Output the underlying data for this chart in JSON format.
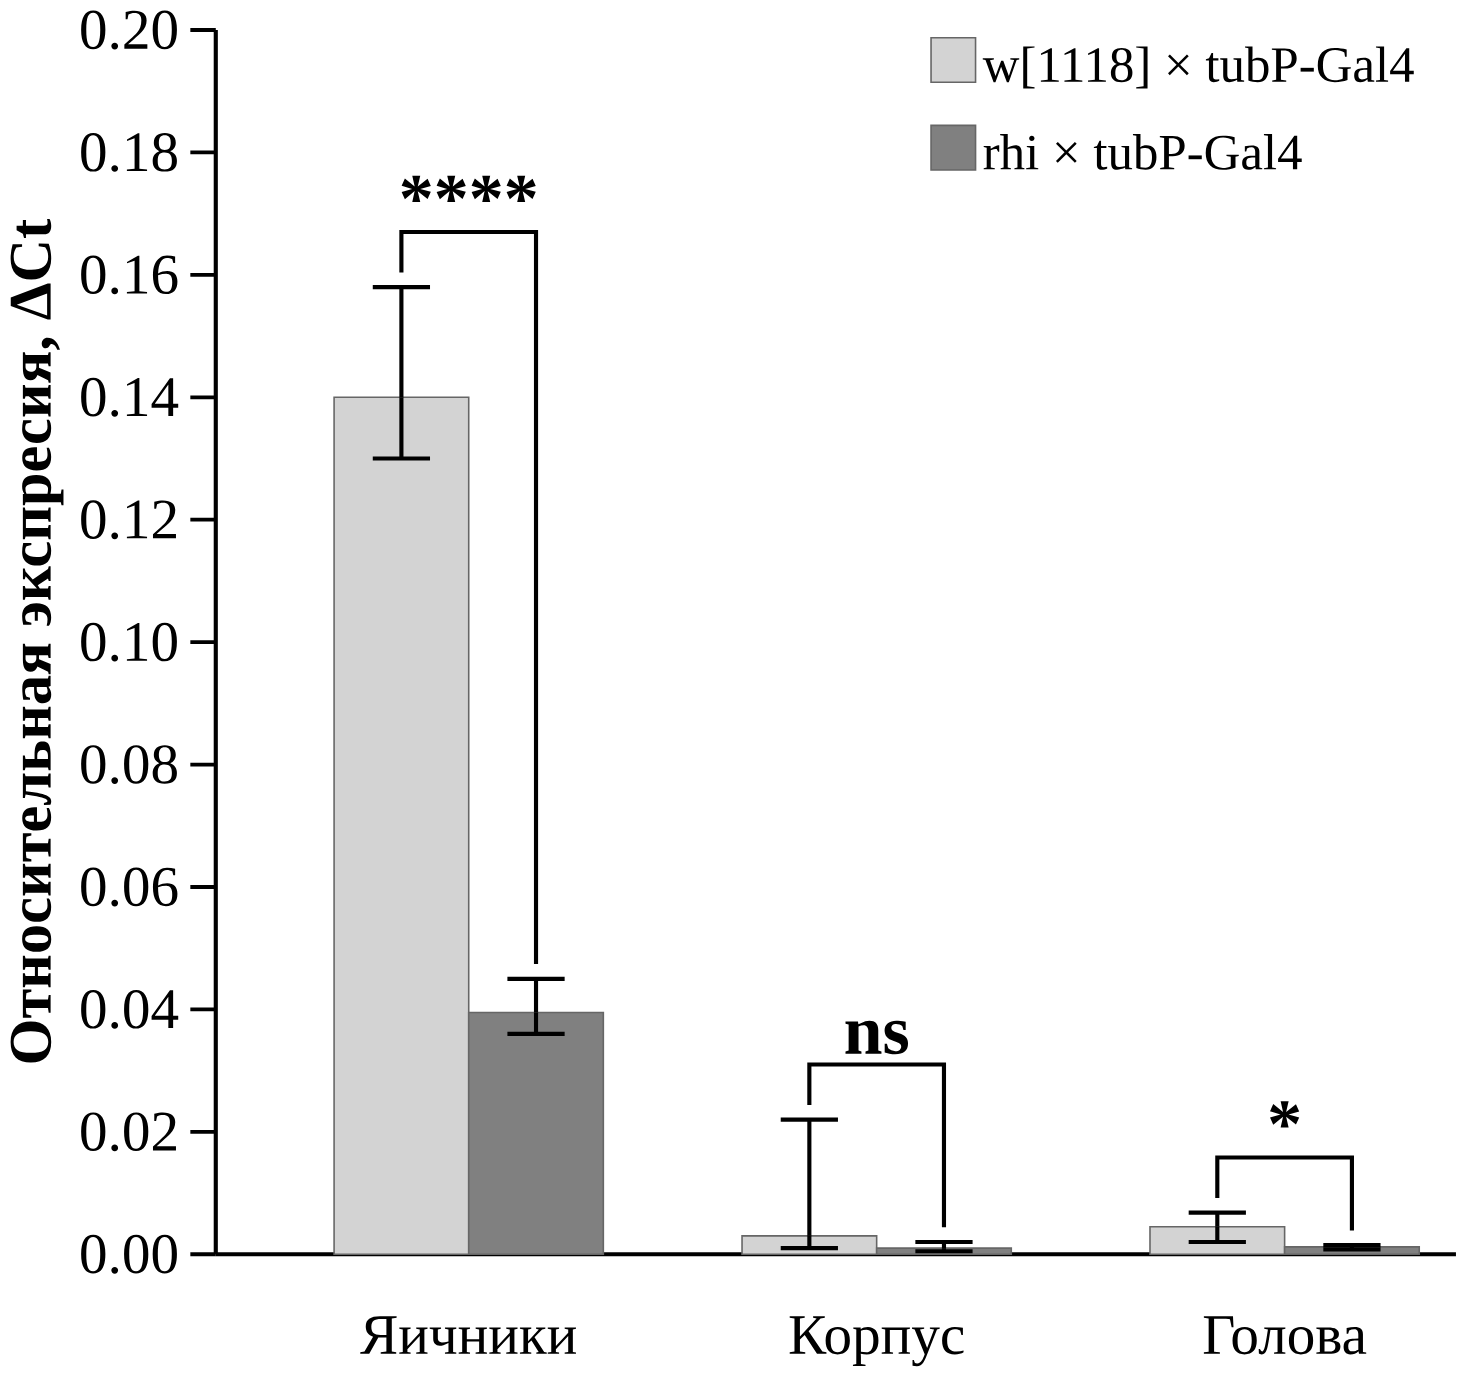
{
  "chart_data": {
    "type": "bar",
    "ylabel": "Относительная экспресия, ΔCt",
    "categories": [
      "Яичники",
      "Корпус",
      "Голова"
    ],
    "series": [
      {
        "name": "w[1118] × tubP-Gal4",
        "color": "#d3d3d3",
        "values": [
          0.14,
          0.003,
          0.0045
        ],
        "errors": [
          [
            0.13,
            0.158
          ],
          [
            0.001,
            0.022
          ],
          [
            0.002,
            0.0068
          ]
        ]
      },
      {
        "name": "rhi × tubP-Gal4",
        "color": "#808080",
        "values": [
          0.0395,
          0.001,
          0.0012
        ],
        "errors": [
          [
            0.036,
            0.045
          ],
          [
            0.0005,
            0.002
          ],
          [
            0.0008,
            0.0015
          ]
        ]
      }
    ],
    "ylim": [
      0,
      0.2
    ],
    "yticks": [
      {
        "value": 0,
        "label": "0.00"
      },
      {
        "value": 0.02,
        "label": "0.02"
      },
      {
        "value": 0.04,
        "label": "0.04"
      },
      {
        "value": 0.06,
        "label": "0.06"
      },
      {
        "value": 0.08,
        "label": "0.08"
      },
      {
        "value": 0.1,
        "label": "0.10"
      },
      {
        "value": 0.12,
        "label": "0.12"
      },
      {
        "value": 0.14,
        "label": "0.14"
      },
      {
        "value": 0.16,
        "label": "0.16"
      },
      {
        "value": 0.18,
        "label": "0.18"
      },
      {
        "value": 0.2,
        "label": "0.20"
      }
    ],
    "annotations": [
      "****",
      "ns",
      "*"
    ],
    "legend": "top right",
    "grid": false
  }
}
